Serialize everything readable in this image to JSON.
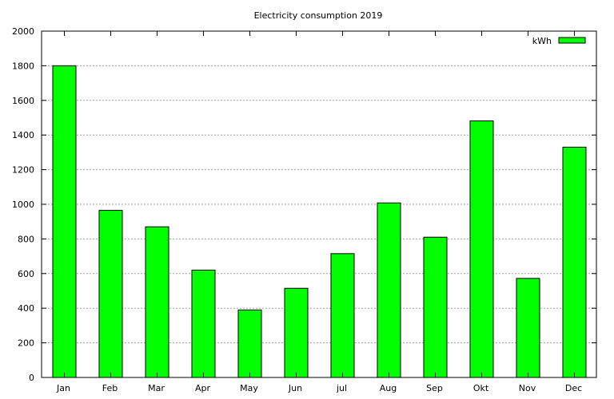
{
  "chart_data": {
    "type": "bar",
    "title": "Electricity consumption 2019",
    "xlabel": "",
    "ylabel": "",
    "categories": [
      "Jan",
      "Feb",
      "Mar",
      "Apr",
      "May",
      "Jun",
      "jul",
      "Aug",
      "Sep",
      "Okt",
      "Nov",
      "Dec"
    ],
    "series": [
      {
        "name": "kWh",
        "values": [
          1800,
          965,
          870,
          620,
          390,
          515,
          715,
          1008,
          810,
          1482,
          572,
          1330
        ],
        "color": "#00ff00"
      }
    ],
    "ylim": [
      0,
      2000
    ],
    "yticks": [
      "0",
      "200",
      "400",
      "600",
      "800",
      "1000",
      "1200",
      "1400",
      "1600",
      "1800",
      "2000"
    ],
    "grid": true,
    "legend_position": "top-right"
  }
}
